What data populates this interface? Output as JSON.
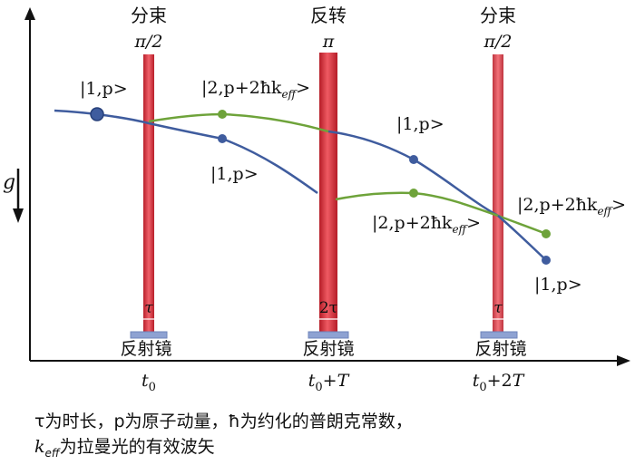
{
  "beams": [
    {
      "title": "分束",
      "angle": "π/2",
      "duration": "τ",
      "mirror": "反射镜",
      "time": "t₀"
    },
    {
      "title": "反转",
      "angle": "π",
      "duration": "2τ",
      "mirror": "反射镜",
      "time": "t₀+T"
    },
    {
      "title": "分束",
      "angle": "π/2",
      "duration": "τ",
      "mirror": "反射镜",
      "time": "t₀+2T"
    }
  ],
  "gravity_label": "g",
  "states": {
    "initial": "|1,p>",
    "upper_excited": "|2,p+2ħk",
    "upper_excited_sub": "eff",
    "upper_excited_end": ">",
    "lower_ground": "|1,p>",
    "mid_ground": "|1,p>",
    "mid_excited": "|2,p+2ħk",
    "mid_excited_sub": "eff",
    "mid_excited_end": ">",
    "out_excited": "|2,p+2ħk",
    "out_excited_sub": "eff",
    "out_excited_end": ">",
    "out_ground": "|1,p>"
  },
  "colors": {
    "ground_path": "#3f5c9e",
    "excited_path": "#6ea33a",
    "beam": "#d8303a",
    "mirror": "#8ea2d2"
  },
  "caption": {
    "line1": "τ为时长，p为原子动量，ħ为约化的普朗克常数，",
    "line2_k": "k",
    "line2_sub": "eff",
    "line2_rest": "为拉曼光的有效波矢"
  }
}
